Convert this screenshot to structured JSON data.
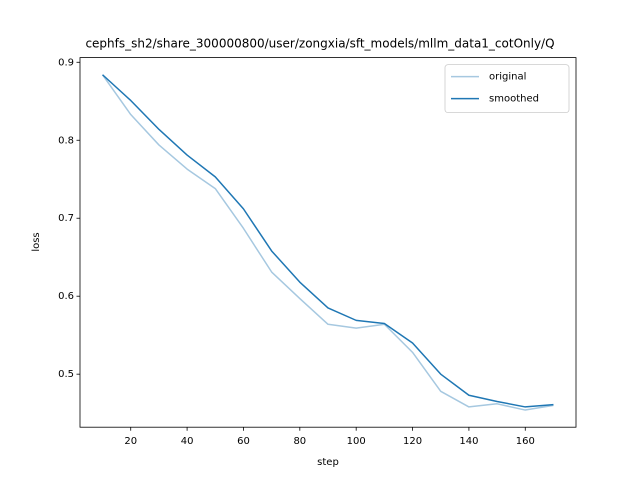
{
  "chart_data": {
    "type": "line",
    "title": "cephfs_sh2/share_300000800/user/zongxia/sft_models/mllm_data1_cotOnly/Q",
    "x_label": "step",
    "y_label": "loss",
    "x": [
      10,
      20,
      30,
      40,
      50,
      60,
      70,
      80,
      90,
      100,
      110,
      120,
      130,
      140,
      150,
      160,
      170
    ],
    "series": [
      {
        "name": "original",
        "color": "#a6c8e0",
        "values": [
          0.884,
          0.833,
          0.794,
          0.763,
          0.738,
          0.687,
          0.631,
          0.597,
          0.564,
          0.559,
          0.564,
          0.528,
          0.478,
          0.458,
          0.462,
          0.454,
          0.46
        ]
      },
      {
        "name": "smoothed",
        "color": "#1f77b4",
        "values": [
          0.884,
          0.851,
          0.814,
          0.781,
          0.753,
          0.712,
          0.658,
          0.618,
          0.585,
          0.569,
          0.565,
          0.54,
          0.5,
          0.473,
          0.465,
          0.458,
          0.461
        ]
      }
    ],
    "xlim": [
      2,
      178
    ],
    "xticks": [
      20,
      40,
      60,
      80,
      100,
      120,
      140,
      160
    ],
    "ylim": [
      0.432,
      0.906
    ],
    "yticks": [
      0.5,
      0.6,
      0.7,
      0.8,
      0.9
    ],
    "grid": false,
    "legend": "upper right"
  }
}
